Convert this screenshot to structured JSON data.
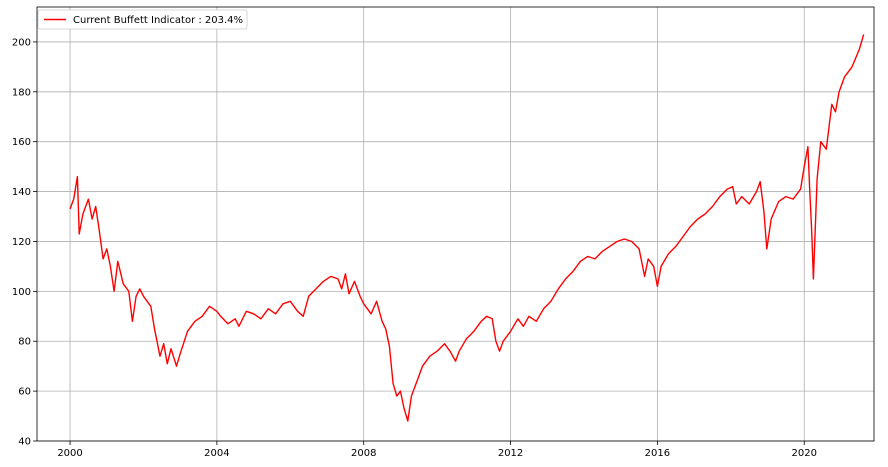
{
  "chart_data": {
    "type": "line",
    "title": "",
    "xlabel": "",
    "ylabel": "",
    "xlim": [
      1999.1,
      2021.9
    ],
    "ylim": [
      40,
      214
    ],
    "grid": true,
    "legend_position": "top-left",
    "x_ticks": [
      2000,
      2004,
      2008,
      2012,
      2016,
      2020
    ],
    "x_tick_labels": [
      "2000",
      "2004",
      "2008",
      "2012",
      "2016",
      "2020"
    ],
    "y_ticks": [
      40,
      60,
      80,
      100,
      120,
      140,
      160,
      180,
      200
    ],
    "y_tick_labels": [
      "40",
      "60",
      "80",
      "100",
      "120",
      "140",
      "160",
      "180",
      "200"
    ],
    "series": [
      {
        "name": "Current Buffett Indicator : 203.4%",
        "color": "#ff0000",
        "x": [
          2000.0,
          2000.1,
          2000.2,
          2000.25,
          2000.35,
          2000.5,
          2000.6,
          2000.7,
          2000.8,
          2000.9,
          2001.0,
          2001.1,
          2001.2,
          2001.3,
          2001.45,
          2001.6,
          2001.7,
          2001.8,
          2001.9,
          2002.0,
          2002.2,
          2002.3,
          2002.45,
          2002.55,
          2002.65,
          2002.75,
          2002.9,
          2003.0,
          2003.2,
          2003.4,
          2003.6,
          2003.8,
          2004.0,
          2004.1,
          2004.3,
          2004.5,
          2004.6,
          2004.8,
          2005.0,
          2005.2,
          2005.4,
          2005.6,
          2005.8,
          2006.0,
          2006.2,
          2006.35,
          2006.5,
          2006.7,
          2006.9,
          2007.1,
          2007.3,
          2007.4,
          2007.5,
          2007.6,
          2007.75,
          2007.9,
          2008.0,
          2008.2,
          2008.35,
          2008.5,
          2008.6,
          2008.7,
          2008.8,
          2008.9,
          2009.0,
          2009.1,
          2009.2,
          2009.3,
          2009.45,
          2009.6,
          2009.8,
          2010.0,
          2010.2,
          2010.35,
          2010.5,
          2010.6,
          2010.8,
          2011.0,
          2011.2,
          2011.35,
          2011.5,
          2011.6,
          2011.7,
          2011.8,
          2012.0,
          2012.2,
          2012.35,
          2012.5,
          2012.7,
          2012.9,
          2013.1,
          2013.3,
          2013.5,
          2013.7,
          2013.9,
          2014.1,
          2014.3,
          2014.5,
          2014.7,
          2014.9,
          2015.1,
          2015.3,
          2015.5,
          2015.65,
          2015.75,
          2015.9,
          2016.0,
          2016.1,
          2016.3,
          2016.5,
          2016.7,
          2016.9,
          2017.1,
          2017.3,
          2017.5,
          2017.7,
          2017.9,
          2018.05,
          2018.15,
          2018.3,
          2018.5,
          2018.7,
          2018.8,
          2018.9,
          2018.98,
          2019.1,
          2019.3,
          2019.5,
          2019.7,
          2019.9,
          2020.0,
          2020.1,
          2020.15,
          2020.2,
          2020.25,
          2020.35,
          2020.45,
          2020.6,
          2020.75,
          2020.85,
          2020.95,
          2021.1,
          2021.3,
          2021.5,
          2021.62
        ],
        "y": [
          133,
          137,
          146,
          123,
          131,
          137,
          129,
          134,
          124,
          113,
          117,
          110,
          100,
          112,
          103,
          100,
          88,
          98,
          101,
          98,
          94,
          85,
          74,
          79,
          71,
          77,
          70,
          75,
          84,
          88,
          90,
          94,
          92,
          90,
          87,
          89,
          86,
          92,
          91,
          89,
          93,
          91,
          95,
          96,
          92,
          90,
          98,
          101,
          104,
          106,
          105,
          101,
          107,
          99,
          104,
          98,
          95,
          91,
          96,
          88,
          85,
          78,
          63,
          58,
          60,
          53,
          48,
          58,
          64,
          70,
          74,
          76,
          79,
          76,
          72,
          76,
          81,
          84,
          88,
          90,
          89,
          80,
          76,
          80,
          84,
          89,
          86,
          90,
          88,
          93,
          96,
          101,
          105,
          108,
          112,
          114,
          113,
          116,
          118,
          120,
          121,
          120,
          117,
          106,
          113,
          110,
          102,
          110,
          115,
          118,
          122,
          126,
          129,
          131,
          134,
          138,
          141,
          142,
          135,
          138,
          135,
          140,
          144,
          132,
          117,
          129,
          136,
          138,
          137,
          141,
          150,
          158,
          140,
          125,
          105,
          145,
          160,
          157,
          175,
          172,
          180,
          186,
          190,
          197,
          203
        ]
      }
    ]
  }
}
